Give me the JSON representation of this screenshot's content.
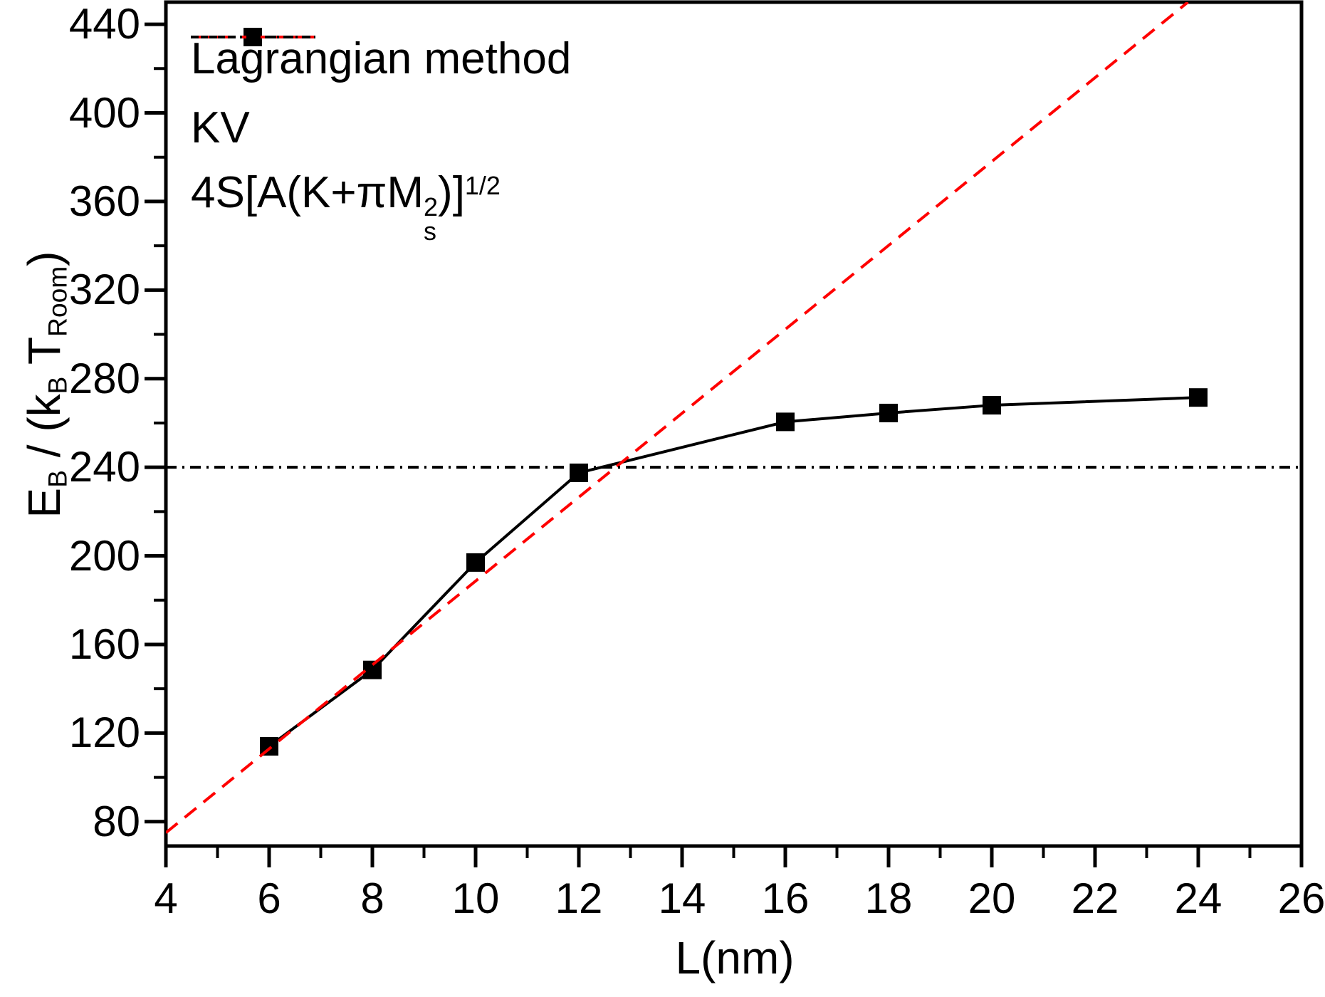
{
  "figure": {
    "background": "#ffffff",
    "frame_color": "#000000"
  },
  "legend": {
    "items": [
      {
        "label": "Lagrangian method",
        "style": "solid-square",
        "color": "#000000"
      },
      {
        "label": "KV",
        "style": "dashed",
        "color": "#ff0000"
      },
      {
        "formula": {
          "base": "4S[A(K+πM",
          "stack_sup": "2",
          "stack_sub": "s",
          "close": ")]",
          "exp": "1/2"
        },
        "style": "dashdotdot",
        "color": "#000000"
      }
    ]
  },
  "axes": {
    "x": {
      "title": "L(nm)",
      "min": 4,
      "max": 26,
      "major_ticks": [
        4,
        6,
        8,
        10,
        12,
        14,
        16,
        18,
        20,
        22,
        24,
        26
      ],
      "minor_ticks": [
        5,
        7,
        9,
        11,
        13,
        15,
        17,
        19,
        21,
        23,
        25
      ]
    },
    "y": {
      "title_parts": {
        "e": "E",
        "e_sub": "B",
        "frac": " / (k",
        "k_sub": "B",
        "t": " T",
        "t_sub": "Room",
        "close": ")"
      },
      "min": 69,
      "max": 450,
      "major_ticks": [
        80,
        120,
        160,
        200,
        240,
        280,
        320,
        360,
        400,
        440
      ],
      "minor_ticks": [
        100,
        140,
        180,
        220,
        260,
        300,
        340,
        380,
        420
      ]
    }
  },
  "chart_data": {
    "type": "line",
    "title": "",
    "xlabel": "L(nm)",
    "ylabel": "E_B / (k_B T_Room)",
    "xlim": [
      4,
      26
    ],
    "ylim": [
      69,
      450
    ],
    "grid": false,
    "legend_position": "top-left-inside",
    "series": [
      {
        "name": "Lagrangian method",
        "type": "line+marker",
        "marker": "filled-square",
        "color": "#000000",
        "style": "solid-square",
        "x": [
          6,
          8,
          10,
          12,
          16,
          18,
          20,
          24
        ],
        "y": [
          114,
          148.5,
          197,
          237.5,
          260.5,
          264.5,
          268,
          271.5
        ]
      },
      {
        "name": "KV",
        "type": "line",
        "color": "#ff0000",
        "style": "dashed",
        "comment": "straight line as drawn, enters left frame and exits top frame",
        "x": [
          4,
          23.8
        ],
        "y": [
          75,
          450
        ]
      },
      {
        "name": "4S[A(K+piMs^2)]^1/2",
        "type": "line",
        "color": "#000000",
        "style": "dashdotdot",
        "comment": "horizontal reference line",
        "x": [
          4,
          26
        ],
        "y": [
          240,
          240
        ]
      }
    ]
  }
}
